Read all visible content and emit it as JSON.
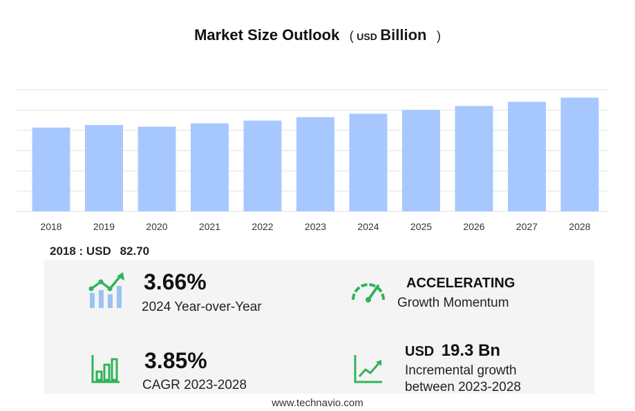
{
  "title": {
    "main": "Market Size Outlook",
    "paren_open": "(",
    "unit_small": "USD",
    "unit_big": "Billion",
    "paren_close": ")"
  },
  "chart_data": {
    "type": "bar",
    "title": "Market Size Outlook",
    "categories": [
      "2018",
      "2019",
      "2020",
      "2021",
      "2022",
      "2023",
      "2024",
      "2025",
      "2026",
      "2027",
      "2028"
    ],
    "values": [
      82.7,
      85.2,
      83.6,
      86.9,
      89.6,
      93.0,
      96.4,
      100.1,
      104.0,
      108.1,
      112.3
    ],
    "ylim": [
      0,
      120
    ],
    "grid": true,
    "bar_color": "#a7c8ff",
    "grid_color": "#e2e2e2"
  },
  "base": {
    "label": "2018 : USD",
    "value": "82.70"
  },
  "stats": {
    "yoy": {
      "value": "3.66%",
      "label": "2024 Year-over-Year"
    },
    "momentum": {
      "value": "ACCELERATING",
      "label": "Growth Momentum"
    },
    "cagr": {
      "value": "3.85%",
      "label": "CAGR 2023-2028"
    },
    "incremental": {
      "prefix": "USD",
      "value": "19.3 Bn",
      "label_line1": "Incremental growth",
      "label_line2": "between 2023-2028"
    }
  },
  "icons": {
    "yoy": "growth-chart-icon",
    "momentum": "speedometer-icon",
    "cagr": "bar-chart-icon",
    "incremental": "trend-line-icon",
    "accent": "#2fb35a",
    "accent_light": "#9bc3f2"
  },
  "footer": "www.technavio.com"
}
